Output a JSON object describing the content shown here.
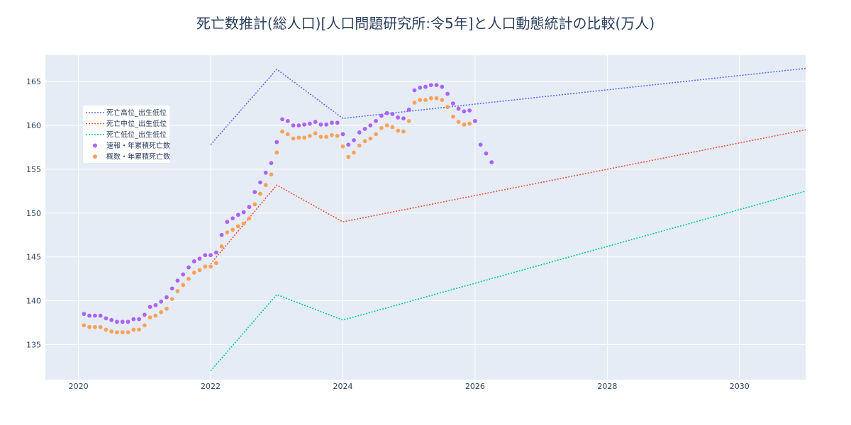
{
  "chart_data": {
    "type": "line",
    "title": "死亡数推計(総人口)[人口問題研究所:令5年]と人口動態統計の比較(万人)",
    "xlabel": "",
    "ylabel": "",
    "xlim": [
      2019.5,
      2031
    ],
    "ylim": [
      131,
      168
    ],
    "grid": true,
    "legend_position": "top-left",
    "x_ticks": [
      {
        "value": 2020,
        "label": "2020"
      },
      {
        "value": 2022,
        "label": "2022"
      },
      {
        "value": 2024,
        "label": "2024"
      },
      {
        "value": 2026,
        "label": "2026"
      },
      {
        "value": 2028,
        "label": "2028"
      },
      {
        "value": 2030,
        "label": "2030"
      }
    ],
    "y_ticks": [
      {
        "value": 135,
        "label": "135"
      },
      {
        "value": 140,
        "label": "140"
      },
      {
        "value": 145,
        "label": "145"
      },
      {
        "value": 150,
        "label": "150"
      },
      {
        "value": 155,
        "label": "155"
      },
      {
        "value": 160,
        "label": "160"
      },
      {
        "value": 165,
        "label": "165"
      }
    ],
    "series": [
      {
        "name": "死亡高位_出生低位",
        "kind": "dotted-line",
        "color": "#636efa",
        "points": [
          [
            2022,
            157.8
          ],
          [
            2023,
            166.4
          ],
          [
            2024,
            160.8
          ],
          [
            2031,
            166.5
          ]
        ]
      },
      {
        "name": "死亡中位_出生低位",
        "kind": "dotted-line",
        "color": "#ef553b",
        "points": [
          [
            2022,
            144.2
          ],
          [
            2023,
            153.2
          ],
          [
            2024,
            149.0
          ],
          [
            2031,
            159.5
          ]
        ]
      },
      {
        "name": "死亡低位_出生低位",
        "kind": "dotted-line",
        "color": "#00cc96",
        "points": [
          [
            2022,
            132.0
          ],
          [
            2023,
            140.7
          ],
          [
            2024,
            137.8
          ],
          [
            2031,
            152.5
          ]
        ]
      },
      {
        "name": "速報・年累積死亡数",
        "kind": "markers",
        "color": "#ab63fa",
        "start_year": 2020,
        "start_month": 2,
        "values": [
          138.5,
          138.3,
          138.3,
          138.3,
          138.0,
          137.8,
          137.6,
          137.6,
          137.6,
          137.9,
          137.9,
          138.4,
          139.3,
          139.5,
          139.9,
          140.4,
          141.4,
          142.3,
          143.0,
          143.8,
          144.5,
          144.8,
          145.2,
          145.2,
          145.5,
          147.5,
          149.0,
          149.4,
          149.8,
          150.1,
          150.7,
          152.4,
          153.5,
          154.6,
          155.7,
          158.1,
          160.7,
          160.5,
          160.0,
          160.0,
          160.1,
          160.2,
          160.4,
          160.1,
          160.1,
          160.3,
          160.3,
          159.0,
          157.8,
          158.3,
          159.2,
          159.6,
          160.0,
          160.5,
          161.1,
          161.4,
          161.3,
          160.9,
          160.8,
          161.8,
          164.0,
          164.3,
          164.4,
          164.6,
          164.6,
          164.4,
          163.6,
          162.5,
          161.9,
          161.6,
          161.7,
          160.5,
          157.8,
          156.8,
          155.8
        ]
      },
      {
        "name": "概数・年累積死亡数",
        "kind": "markers",
        "color": "#ffa15a",
        "start_year": 2020,
        "start_month": 2,
        "values": [
          137.2,
          137.0,
          137.0,
          137.0,
          136.7,
          136.5,
          136.4,
          136.4,
          136.4,
          136.7,
          136.7,
          137.2,
          138.1,
          138.3,
          138.7,
          139.1,
          140.2,
          141.1,
          141.8,
          142.5,
          143.2,
          143.5,
          143.9,
          143.9,
          144.3,
          146.2,
          147.8,
          148.1,
          148.5,
          148.8,
          149.4,
          151.0,
          152.2,
          153.2,
          154.4,
          156.9,
          159.3,
          159.0,
          158.5,
          158.6,
          158.6,
          158.8,
          159.1,
          158.7,
          158.7,
          158.9,
          158.8,
          157.6,
          156.4,
          156.9,
          157.7,
          158.2,
          158.5,
          159.0,
          159.7,
          160.0,
          159.8,
          159.4,
          159.3,
          160.5,
          162.6,
          162.9,
          162.9,
          163.1,
          163.1,
          162.9,
          162.1,
          161.0,
          160.4,
          160.1,
          160.2
        ]
      }
    ]
  }
}
